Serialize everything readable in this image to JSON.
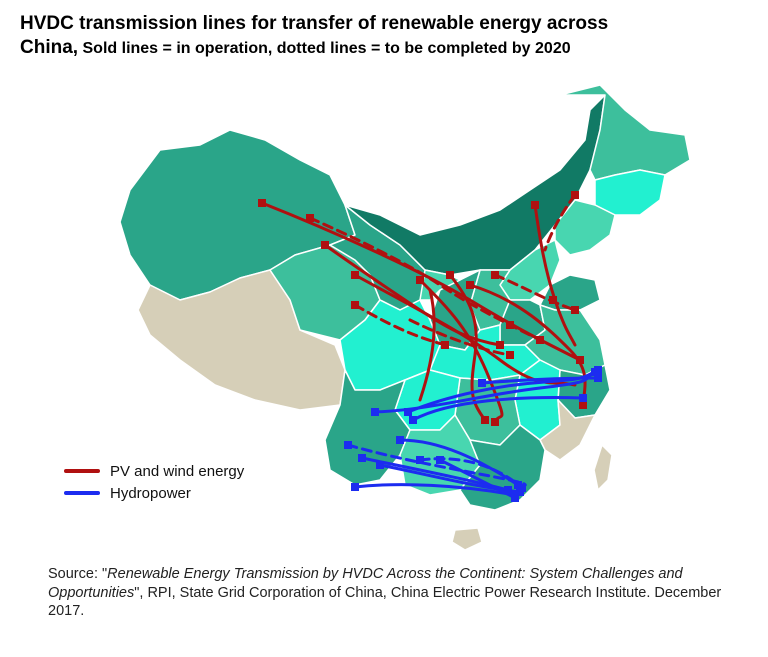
{
  "title": {
    "line1": "HVDC transmission lines for transfer of renewable energy across",
    "line2_bold": "China,",
    "line2_rest": " Sold lines = in operation, dotted lines = to be completed by 2020"
  },
  "legend": [
    {
      "label": "PV and wind energy",
      "color": "#b01010"
    },
    {
      "label": "Hydropower",
      "color": "#1c2cf0"
    }
  ],
  "source": {
    "prefix": "Source: \"",
    "italic": "Renewable Energy Transmission by HVDC Across the Continent: System Challenges and Opportunities",
    "suffix": "\", RPI, State Grid Corporation of China, China Electric Power Research Institute. December 2017."
  },
  "colors": {
    "region_dark": "#117a65",
    "region_mid": "#2aa589",
    "region_light": "#3dbf9c",
    "region_pale": "#48d6b0",
    "region_cyan": "#22f0d0",
    "region_tan": "#d6cfb8",
    "pv_wind": "#b01010",
    "hydro": "#1c2cf0"
  }
}
